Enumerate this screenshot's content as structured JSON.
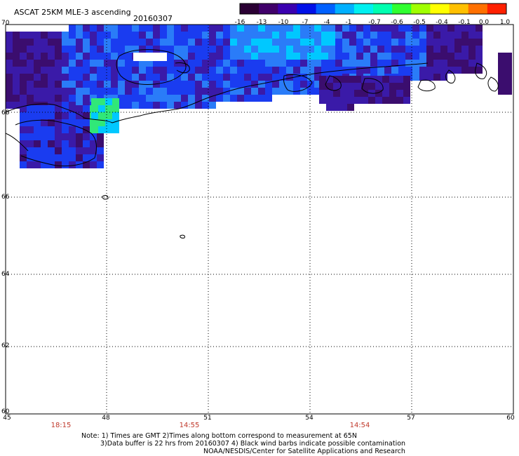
{
  "header": {
    "title": "ASCAT 25KM MLE-3 ascending",
    "date": "20160307"
  },
  "colorbar": {
    "ticks": [
      "-16",
      "-13",
      "-10",
      "-7",
      "-4",
      "-1",
      "-0.7",
      "-0.6",
      "-0.5",
      "-0.4",
      "-0.1",
      "0.0",
      "1.0"
    ],
    "colors": [
      "#2a0033",
      "#40006a",
      "#3a00b0",
      "#0010e8",
      "#0060ff",
      "#00b0ff",
      "#00f0f0",
      "#00ffb0",
      "#30ff30",
      "#a0ff00",
      "#ffff00",
      "#ffc000",
      "#ff7000",
      "#ff2000"
    ]
  },
  "axes": {
    "lat_labels": [
      "70",
      "68",
      "66",
      "64",
      "62",
      "60"
    ],
    "lon_labels": [
      "45",
      "48",
      "51",
      "54",
      "57",
      "60"
    ]
  },
  "times": [
    "18:15",
    "14:55",
    "14:54"
  ],
  "notes": {
    "line1": "Note: 1) Times are GMT 2)Times along bottom correspond to measurement at 65N",
    "line2": "3)Data buffer is 22 hrs from 20160307 4) Black wind barbs indicate possible contamination",
    "line3": "NOAA/NESDIS/Center for Satellite Applications and Research"
  },
  "palette": {
    "deep_purple": "#3b0d6e",
    "indigo": "#3a1aa8",
    "blue": "#1a3cf0",
    "light_blue": "#2a7cf8",
    "cyan": "#00c8ff",
    "green": "#30e878"
  }
}
